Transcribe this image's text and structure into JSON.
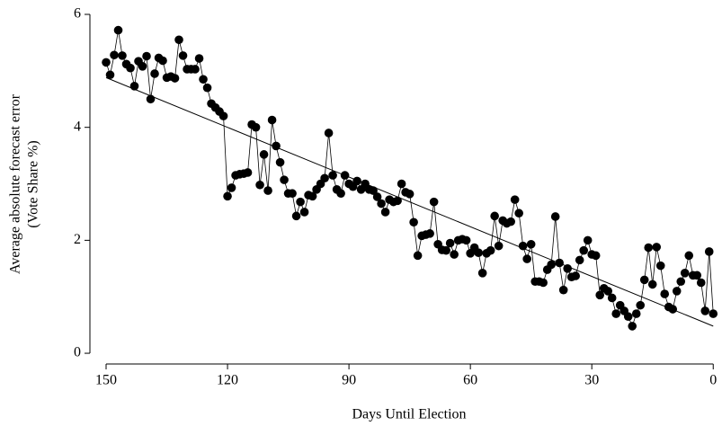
{
  "chart_data": {
    "type": "line",
    "x_label": "Days Until Election",
    "y_label": [
      "Average absolute forecast error",
      "(Vote Share %)"
    ],
    "x": [
      150,
      149,
      148,
      147,
      146,
      145,
      144,
      143,
      142,
      141,
      140,
      139,
      138,
      137,
      136,
      135,
      134,
      133,
      132,
      131,
      130,
      129,
      128,
      127,
      126,
      125,
      124,
      123,
      122,
      121,
      120,
      119,
      118,
      117,
      116,
      115,
      114,
      113,
      112,
      111,
      110,
      109,
      108,
      107,
      106,
      105,
      104,
      103,
      102,
      101,
      100,
      99,
      98,
      97,
      96,
      95,
      94,
      93,
      92,
      91,
      90,
      89,
      88,
      87,
      86,
      85,
      84,
      83,
      82,
      81,
      80,
      79,
      78,
      77,
      76,
      75,
      74,
      73,
      72,
      71,
      70,
      69,
      68,
      67,
      66,
      65,
      64,
      63,
      62,
      61,
      60,
      59,
      58,
      57,
      56,
      55,
      54,
      53,
      52,
      51,
      50,
      49,
      48,
      47,
      46,
      45,
      44,
      43,
      42,
      41,
      40,
      39,
      38,
      37,
      36,
      35,
      34,
      33,
      32,
      31,
      30,
      29,
      28,
      27,
      26,
      25,
      24,
      23,
      22,
      21,
      20,
      19,
      18,
      17,
      16,
      15,
      14,
      13,
      12,
      11,
      10,
      9,
      8,
      7,
      6,
      5,
      4,
      3,
      2,
      1,
      0
    ],
    "values": [
      5.15,
      4.93,
      5.28,
      5.72,
      5.27,
      5.12,
      5.05,
      4.73,
      5.17,
      5.08,
      5.26,
      4.5,
      4.95,
      5.23,
      5.18,
      4.88,
      4.9,
      4.87,
      5.55,
      5.27,
      5.03,
      5.03,
      5.03,
      5.22,
      4.85,
      4.7,
      4.42,
      4.35,
      4.28,
      4.2,
      2.78,
      2.93,
      3.15,
      3.17,
      3.18,
      3.2,
      4.05,
      4.0,
      2.98,
      3.52,
      2.88,
      4.13,
      3.67,
      3.38,
      3.07,
      2.83,
      2.83,
      2.43,
      2.68,
      2.5,
      2.8,
      2.78,
      2.9,
      3.0,
      3.1,
      3.9,
      3.15,
      2.9,
      2.83,
      3.15,
      3.0,
      2.95,
      3.05,
      2.9,
      3.0,
      2.9,
      2.88,
      2.77,
      2.65,
      2.5,
      2.72,
      2.68,
      2.7,
      3.0,
      2.85,
      2.82,
      2.32,
      1.73,
      2.08,
      2.1,
      2.12,
      2.68,
      1.93,
      1.83,
      1.82,
      1.95,
      1.75,
      2.0,
      2.02,
      2.0,
      1.77,
      1.87,
      1.78,
      1.42,
      1.77,
      1.82,
      2.43,
      1.9,
      2.35,
      2.3,
      2.33,
      2.72,
      2.48,
      1.9,
      1.67,
      1.93,
      1.27,
      1.27,
      1.25,
      1.48,
      1.57,
      2.42,
      1.6,
      1.12,
      1.5,
      1.35,
      1.37,
      1.65,
      1.82,
      2.0,
      1.75,
      1.73,
      1.03,
      1.15,
      1.1,
      0.98,
      0.7,
      0.85,
      0.75,
      0.65,
      0.48,
      0.7,
      0.85,
      1.3,
      1.87,
      1.22,
      1.88,
      1.55,
      1.05,
      0.82,
      0.78,
      1.1,
      1.27,
      1.42,
      1.73,
      1.38,
      1.38,
      1.25,
      0.75,
      1.8,
      0.7
    ],
    "color": "#000000",
    "trend": {
      "x": [
        150,
        0
      ],
      "values": [
        4.88,
        0.48
      ]
    },
    "xlim": [
      154,
      -1.5
    ],
    "xticks": [
      150,
      120,
      90,
      60,
      30,
      0
    ],
    "ylim": [
      -0.19,
      6
    ],
    "yticks": [
      0,
      2,
      4,
      6
    ]
  }
}
